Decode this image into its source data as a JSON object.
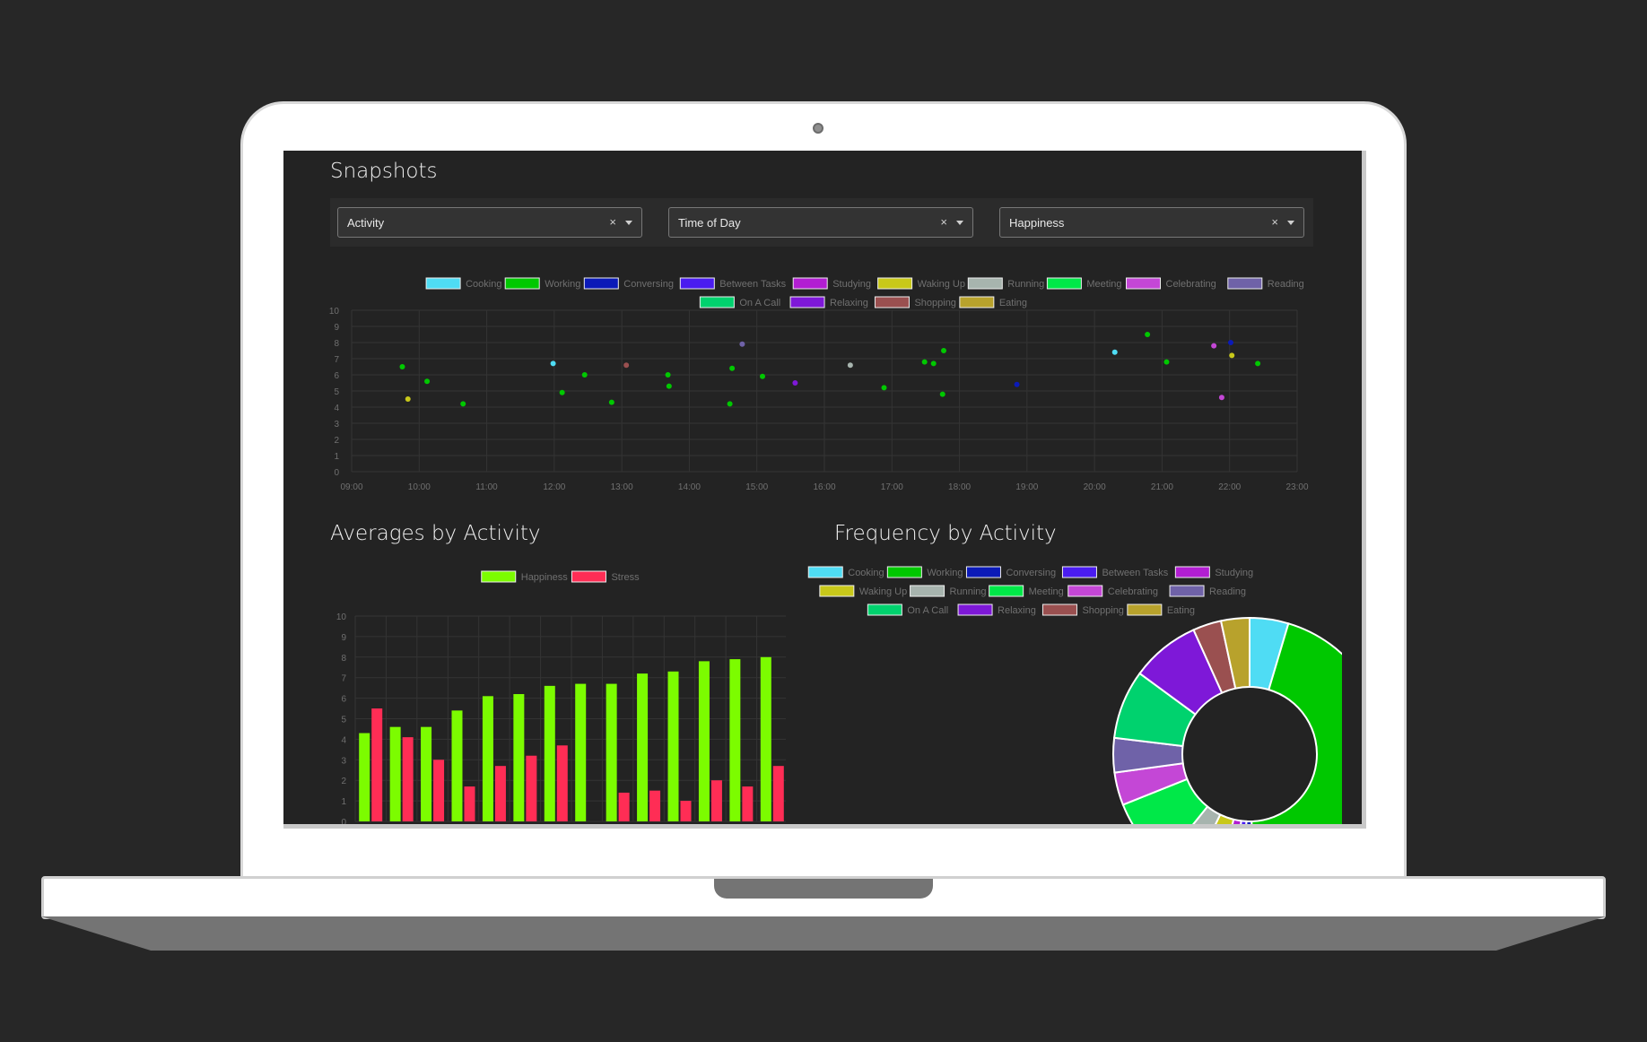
{
  "page": {
    "title": "Snapshots"
  },
  "filters": [
    {
      "value": "Activity",
      "clear": "×"
    },
    {
      "value": "Time of Day",
      "clear": "×"
    },
    {
      "value": "Happiness",
      "clear": "×"
    }
  ],
  "activities": [
    {
      "name": "Cooking",
      "color": "#4fdcf4"
    },
    {
      "name": "Working",
      "color": "#00c800"
    },
    {
      "name": "Conversing",
      "color": "#0b1ab8"
    },
    {
      "name": "Between Tasks",
      "color": "#4a1cf0"
    },
    {
      "name": "Studying",
      "color": "#b21ed2"
    },
    {
      "name": "Waking Up",
      "color": "#c8c81a"
    },
    {
      "name": "Running",
      "color": "#a7b4ae"
    },
    {
      "name": "Meeting",
      "color": "#00e848"
    },
    {
      "name": "Celebrating",
      "color": "#c447d6"
    },
    {
      "name": "Reading",
      "color": "#6f62a8"
    },
    {
      "name": "On A Call",
      "color": "#00d26e"
    },
    {
      "name": "Relaxing",
      "color": "#7e18d8"
    },
    {
      "name": "Shopping",
      "color": "#9a5050"
    },
    {
      "name": "Eating",
      "color": "#b8a22c"
    }
  ],
  "sections": {
    "averages_title": "Averages by Activity",
    "frequency_title": "Frequency by Activity"
  },
  "chart_data": [
    {
      "type": "scatter",
      "title": "",
      "xlabel": "",
      "ylabel": "",
      "x_ticks": [
        "09:00",
        "10:00",
        "11:00",
        "12:00",
        "13:00",
        "14:00",
        "15:00",
        "16:00",
        "17:00",
        "18:00",
        "19:00",
        "20:00",
        "21:00",
        "22:00",
        "23:00"
      ],
      "ylim": [
        0,
        10
      ],
      "y_ticks": [
        "0",
        "1",
        "2",
        "3",
        "4",
        "5",
        "6",
        "7",
        "8",
        "9",
        "10"
      ],
      "grid": true,
      "legend": "top-center",
      "points": [
        {
          "t": "09:45",
          "y": 6.5,
          "activity": "Working"
        },
        {
          "t": "09:50",
          "y": 4.5,
          "activity": "Waking Up"
        },
        {
          "t": "10:07",
          "y": 5.6,
          "activity": "Working"
        },
        {
          "t": "10:39",
          "y": 4.2,
          "activity": "Working"
        },
        {
          "t": "11:59",
          "y": 6.7,
          "activity": "Cooking"
        },
        {
          "t": "12:07",
          "y": 4.9,
          "activity": "Working"
        },
        {
          "t": "12:27",
          "y": 6.0,
          "activity": "Working"
        },
        {
          "t": "12:51",
          "y": 4.3,
          "activity": "Working"
        },
        {
          "t": "13:04",
          "y": 6.6,
          "activity": "Shopping"
        },
        {
          "t": "13:41",
          "y": 6.0,
          "activity": "Working"
        },
        {
          "t": "13:42",
          "y": 5.3,
          "activity": "Working"
        },
        {
          "t": "14:36",
          "y": 4.2,
          "activity": "Working"
        },
        {
          "t": "14:38",
          "y": 6.4,
          "activity": "Working"
        },
        {
          "t": "14:47",
          "y": 7.9,
          "activity": "Reading"
        },
        {
          "t": "15:05",
          "y": 5.9,
          "activity": "Working"
        },
        {
          "t": "15:34",
          "y": 5.5,
          "activity": "Relaxing"
        },
        {
          "t": "16:23",
          "y": 6.6,
          "activity": "Running"
        },
        {
          "t": "16:53",
          "y": 5.2,
          "activity": "Working"
        },
        {
          "t": "17:29",
          "y": 6.8,
          "activity": "Working"
        },
        {
          "t": "17:37",
          "y": 6.7,
          "activity": "Working"
        },
        {
          "t": "17:45",
          "y": 4.8,
          "activity": "Working"
        },
        {
          "t": "17:46",
          "y": 7.5,
          "activity": "Working"
        },
        {
          "t": "18:51",
          "y": 5.4,
          "activity": "Conversing"
        },
        {
          "t": "20:18",
          "y": 7.4,
          "activity": "Cooking"
        },
        {
          "t": "20:47",
          "y": 8.5,
          "activity": "Working"
        },
        {
          "t": "21:04",
          "y": 6.8,
          "activity": "Working"
        },
        {
          "t": "21:46",
          "y": 7.8,
          "activity": "Celebrating"
        },
        {
          "t": "21:53",
          "y": 4.6,
          "activity": "Celebrating"
        },
        {
          "t": "22:01",
          "y": 8.0,
          "activity": "Conversing"
        },
        {
          "t": "22:02",
          "y": 7.2,
          "activity": "Waking Up"
        },
        {
          "t": "22:25",
          "y": 6.7,
          "activity": "Working"
        }
      ]
    },
    {
      "type": "bar",
      "title": "",
      "xlabel": "",
      "ylabel": "",
      "ylim": [
        0,
        10
      ],
      "y_ticks": [
        "0",
        "1",
        "2",
        "3",
        "4",
        "5",
        "6",
        "7",
        "8",
        "9",
        "10"
      ],
      "grid": true,
      "legend": "top-center",
      "series": [
        {
          "name": "Happiness",
          "color": "#7cfc00",
          "values": [
            4.3,
            4.6,
            4.6,
            5.4,
            6.1,
            6.2,
            6.6,
            6.7,
            6.7,
            7.2,
            7.3,
            7.8,
            7.9,
            8.0
          ]
        },
        {
          "name": "Stress",
          "color": "#ff2d55",
          "values": [
            5.5,
            4.1,
            3.0,
            1.7,
            2.7,
            3.2,
            3.7,
            0,
            1.4,
            1.5,
            1.0,
            2.0,
            1.7,
            2.7
          ]
        }
      ]
    },
    {
      "type": "pie",
      "title": "",
      "legend": "top-center",
      "shape": "doughnut",
      "slices": [
        {
          "label": "Cooking",
          "value": 4.5
        },
        {
          "label": "Working",
          "value": 44
        },
        {
          "label": "Conversing",
          "value": 1.2
        },
        {
          "label": "Between Tasks",
          "value": 1.2
        },
        {
          "label": "Studying",
          "value": 1.8
        },
        {
          "label": "Waking Up",
          "value": 3.3
        },
        {
          "label": "Running",
          "value": 3.5
        },
        {
          "label": "Meeting",
          "value": 8
        },
        {
          "label": "Celebrating",
          "value": 3.8
        },
        {
          "label": "Reading",
          "value": 4
        },
        {
          "label": "On A Call",
          "value": 8
        },
        {
          "label": "Relaxing",
          "value": 8
        },
        {
          "label": "Shopping",
          "value": 3.3
        },
        {
          "label": "Eating",
          "value": 3.3
        }
      ]
    }
  ]
}
